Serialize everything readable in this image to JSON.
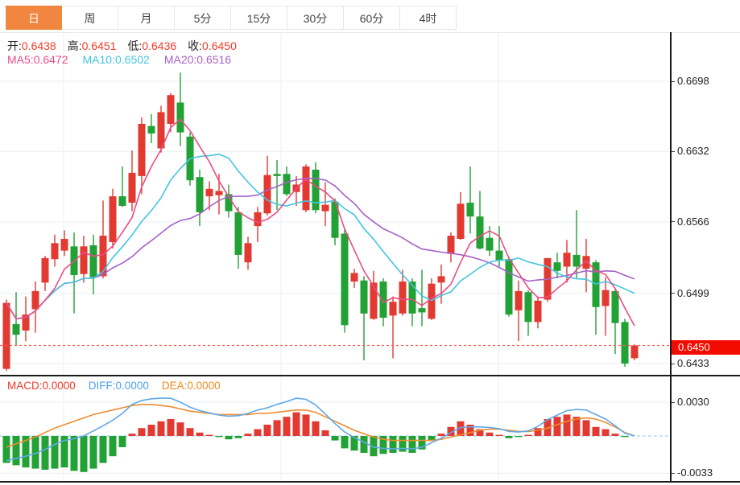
{
  "tabs": [
    {
      "name": "tab-day",
      "label": "日",
      "active": true
    },
    {
      "name": "tab-week",
      "label": "周",
      "active": false
    },
    {
      "name": "tab-month",
      "label": "月",
      "active": false
    },
    {
      "name": "tab-5min",
      "label": "5分",
      "active": false
    },
    {
      "name": "tab-15min",
      "label": "15分",
      "active": false
    },
    {
      "name": "tab-30min",
      "label": "30分",
      "active": false
    },
    {
      "name": "tab-60min",
      "label": "60分",
      "active": false
    },
    {
      "name": "tab-4hour",
      "label": "4时",
      "active": false
    }
  ],
  "quote": {
    "items": [
      {
        "label": "开:",
        "value": "0.6438"
      },
      {
        "label": "高:",
        "value": "0.6451"
      },
      {
        "label": "低:",
        "value": "0.6436"
      },
      {
        "label": "收:",
        "value": "0.6450"
      }
    ]
  },
  "ma_legend": [
    {
      "label": "MA5:",
      "value": "0.6472",
      "color": "#ec4b86"
    },
    {
      "label": "MA10:",
      "value": "0.6502",
      "color": "#43c5e2"
    },
    {
      "label": "MA20:",
      "value": "0.6516",
      "color": "#a761c8"
    }
  ],
  "macd_legend": [
    {
      "label": "MACD:",
      "value": "0.0000",
      "color": "#f23b2a"
    },
    {
      "label": "DIFF:",
      "value": "0.0000",
      "color": "#4da2f0"
    },
    {
      "label": "DEA:",
      "value": "0.0000",
      "color": "#f08a1e"
    }
  ],
  "y_axis": {
    "main_ticks": [
      "0.6698",
      "0.6632",
      "0.6566",
      "0.6499",
      "0.6433"
    ],
    "last_price_badge": "0.6450",
    "macd_ticks": [
      "0.0030",
      "-0.0033"
    ]
  },
  "colors": {
    "accent_orange": "#f0863f",
    "up": "#e23a31",
    "down": "#22a135",
    "ma5": "#ec4b86",
    "ma10": "#43c5e2",
    "ma20": "#a761c8",
    "diff_line": "#5fa8e8",
    "dea_line": "#ee8c30",
    "value_red": "#f23b2a",
    "badge_red": "#f40b00",
    "grid": "#e9eff5",
    "zero_dash": "#a5d3f0",
    "close_dash": "#ff5b52"
  },
  "chart_data": {
    "type": "candlestick",
    "note": "Chinese convention: red = up candle, green = down candle. MACD panel below.",
    "panels": [
      {
        "type": "candlestick",
        "price_ticks": [
          0.6698,
          0.6632,
          0.6566,
          0.6499,
          0.6433
        ],
        "last_close": 0.645,
        "quote": {
          "open": 0.6438,
          "high": 0.6451,
          "low": 0.6436,
          "close": 0.645
        },
        "ma_displayed": {
          "MA5": 0.6472,
          "MA10": 0.6502,
          "MA20": 0.6516
        },
        "ma_windows": [
          5,
          10,
          20
        ],
        "legend_position": "top-left",
        "grid": true,
        "candles_ohlc": [
          [
            0.6428,
            0.6493,
            0.6426,
            0.649
          ],
          [
            0.647,
            0.65,
            0.645,
            0.646
          ],
          [
            0.6464,
            0.6496,
            0.6454,
            0.6479
          ],
          [
            0.6484,
            0.651,
            0.6462,
            0.6501
          ],
          [
            0.6509,
            0.6534,
            0.6501,
            0.6532
          ],
          [
            0.6531,
            0.6554,
            0.6524,
            0.6546
          ],
          [
            0.6539,
            0.6558,
            0.6534,
            0.655
          ],
          [
            0.6543,
            0.6556,
            0.648,
            0.6516
          ],
          [
            0.6517,
            0.6553,
            0.6509,
            0.6543
          ],
          [
            0.6544,
            0.6554,
            0.6498,
            0.6514
          ],
          [
            0.6515,
            0.6586,
            0.6513,
            0.6553
          ],
          [
            0.6547,
            0.6597,
            0.6541,
            0.659
          ],
          [
            0.659,
            0.6618,
            0.658,
            0.6581
          ],
          [
            0.6584,
            0.6633,
            0.6576,
            0.6612
          ],
          [
            0.6609,
            0.6664,
            0.6592,
            0.6658
          ],
          [
            0.6656,
            0.6667,
            0.664,
            0.6649
          ],
          [
            0.6635,
            0.6675,
            0.6631,
            0.6669
          ],
          [
            0.6658,
            0.6687,
            0.665,
            0.6685
          ],
          [
            0.6678,
            0.6706,
            0.6637,
            0.665
          ],
          [
            0.6646,
            0.665,
            0.66,
            0.6605
          ],
          [
            0.6608,
            0.6615,
            0.6562,
            0.6575
          ],
          [
            0.659,
            0.6604,
            0.6577,
            0.6597
          ],
          [
            0.6591,
            0.6611,
            0.6573,
            0.6595
          ],
          [
            0.6592,
            0.6601,
            0.657,
            0.6576
          ],
          [
            0.6575,
            0.658,
            0.6522,
            0.6535
          ],
          [
            0.6528,
            0.6552,
            0.6521,
            0.6546
          ],
          [
            0.6562,
            0.658,
            0.6547,
            0.6575
          ],
          [
            0.6574,
            0.6628,
            0.6572,
            0.661
          ],
          [
            0.6611,
            0.6624,
            0.6577,
            0.6609
          ],
          [
            0.6611,
            0.6618,
            0.659,
            0.6592
          ],
          [
            0.6594,
            0.6609,
            0.6581,
            0.6601
          ],
          [
            0.6577,
            0.662,
            0.6575,
            0.6618
          ],
          [
            0.6615,
            0.6622,
            0.6574,
            0.6577
          ],
          [
            0.6576,
            0.6603,
            0.6562,
            0.6582
          ],
          [
            0.6585,
            0.6588,
            0.6544,
            0.6551
          ],
          [
            0.6555,
            0.656,
            0.6462,
            0.6469
          ],
          [
            0.651,
            0.6522,
            0.6504,
            0.6518
          ],
          [
            0.6511,
            0.6515,
            0.6436,
            0.648
          ],
          [
            0.6475,
            0.652,
            0.6474,
            0.6509
          ],
          [
            0.651,
            0.6513,
            0.6468,
            0.6476
          ],
          [
            0.6478,
            0.6496,
            0.6438,
            0.6491
          ],
          [
            0.648,
            0.6521,
            0.6478,
            0.651
          ],
          [
            0.651,
            0.6513,
            0.6468,
            0.648
          ],
          [
            0.6485,
            0.6521,
            0.6468,
            0.6481
          ],
          [
            0.6475,
            0.6513,
            0.6474,
            0.6508
          ],
          [
            0.6509,
            0.6526,
            0.6489,
            0.6515
          ],
          [
            0.6536,
            0.6556,
            0.6528,
            0.6553
          ],
          [
            0.655,
            0.6594,
            0.6549,
            0.6583
          ],
          [
            0.6584,
            0.6618,
            0.6555,
            0.6571
          ],
          [
            0.6571,
            0.6595,
            0.654,
            0.6541
          ],
          [
            0.6551,
            0.6562,
            0.6534,
            0.6539
          ],
          [
            0.6539,
            0.6562,
            0.6524,
            0.653
          ],
          [
            0.6531,
            0.6533,
            0.6477,
            0.6479
          ],
          [
            0.6483,
            0.6511,
            0.6454,
            0.6501
          ],
          [
            0.65,
            0.6502,
            0.6459,
            0.6472
          ],
          [
            0.6472,
            0.6496,
            0.6466,
            0.6492
          ],
          [
            0.6493,
            0.6532,
            0.6491,
            0.6532
          ],
          [
            0.6528,
            0.6537,
            0.6513,
            0.652
          ],
          [
            0.6524,
            0.6549,
            0.6509,
            0.6537
          ],
          [
            0.6535,
            0.6577,
            0.6513,
            0.6524
          ],
          [
            0.6522,
            0.655,
            0.65,
            0.6534
          ],
          [
            0.6528,
            0.653,
            0.646,
            0.6486
          ],
          [
            0.6487,
            0.6514,
            0.6459,
            0.6502
          ],
          [
            0.6501,
            0.6503,
            0.6442,
            0.6471
          ],
          [
            0.6472,
            0.6475,
            0.643,
            0.6433
          ],
          [
            0.6438,
            0.6451,
            0.6436,
            0.645
          ]
        ]
      },
      {
        "type": "macd",
        "value_ticks": [
          0.003,
          -0.0033
        ],
        "displayed": {
          "MACD": 0.0,
          "DIFF": 0.0,
          "DEA": 0.0
        },
        "diff_rule": "DIFF = DEA + hist/2 (hist = 2*(DIFF-DEA))",
        "hist": [
          -0.0024,
          -0.0026,
          -0.0028,
          -0.0029,
          -0.003,
          -0.0029,
          -0.0028,
          -0.0031,
          -0.0032,
          -0.0029,
          -0.0024,
          -0.0018,
          -0.001,
          0.0002,
          0.0007,
          0.001,
          0.0013,
          0.0015,
          0.0012,
          0.0007,
          0.0003,
          0.0001,
          -0.0001,
          -0.0003,
          -0.0002,
          0.0002,
          0.0006,
          0.001,
          0.0014,
          0.0017,
          0.0021,
          0.0019,
          0.0013,
          0.0005,
          -0.0004,
          -0.0011,
          -0.0013,
          -0.0015,
          -0.0018,
          -0.0016,
          -0.0015,
          -0.0014,
          -0.0015,
          -0.0012,
          -0.0004,
          0.0002,
          0.0008,
          0.0013,
          0.001,
          0.0006,
          0.0003,
          0.0001,
          -0.0002,
          -0.0001,
          0.0001,
          0.0007,
          0.0015,
          0.0017,
          0.0019,
          0.0017,
          0.0014,
          0.0008,
          0.0006,
          0.0002,
          -0.0001,
          0.0
        ],
        "dea": [
          -0.001,
          -0.0007,
          -0.0004,
          -0.0001,
          0.0003,
          0.0007,
          0.001,
          0.0013,
          0.0016,
          0.0019,
          0.0021,
          0.0023,
          0.0025,
          0.0027,
          0.0028,
          0.0028,
          0.0027,
          0.0026,
          0.0024,
          0.0022,
          0.0021,
          0.002,
          0.0019,
          0.0019,
          0.0019,
          0.0019,
          0.002,
          0.002,
          0.0021,
          0.0022,
          0.0023,
          0.0023,
          0.0021,
          0.0017,
          0.0013,
          0.0009,
          0.0005,
          0.0002,
          -0.0001,
          -0.0003,
          -0.0004,
          -0.0004,
          -0.0004,
          -0.0004,
          -0.0004,
          -0.0003,
          -0.0001,
          0.0001,
          0.0003,
          0.0005,
          0.0006,
          0.0006,
          0.0005,
          0.0004,
          0.0004,
          0.0005,
          0.0007,
          0.001,
          0.0013,
          0.0015,
          0.0016,
          0.0015,
          0.0012,
          0.0008,
          0.0003,
          0.0
        ]
      }
    ]
  }
}
